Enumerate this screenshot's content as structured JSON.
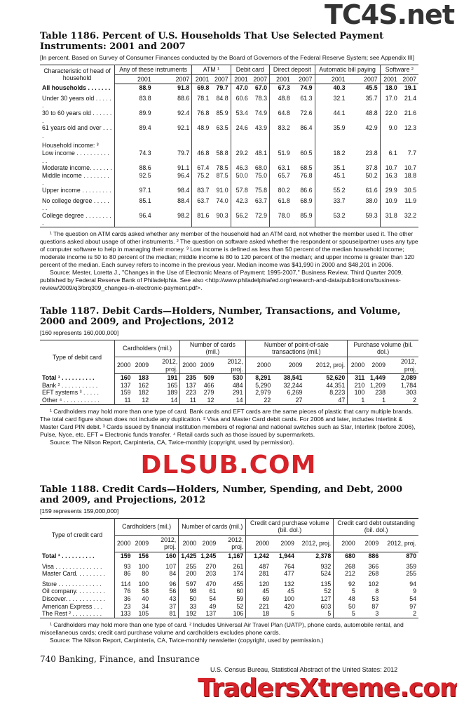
{
  "watermarks": {
    "top": "TC4S.net",
    "middle": "DLSUB.COM",
    "bottom": "TradersXtreme.com"
  },
  "t1186": {
    "title": "Table 1186. Percent of U.S. Households That Use Selected Payment Instruments: 2001 and 2007",
    "subtitle": "[In percent. Based on Survey of Consumer Finances conducted by the Board of Governors of the Federal Reserve System; see Appendix III]",
    "stub": "Characteristic of head of household",
    "groups": [
      "Any of these instruments",
      "ATM ¹",
      "Debit card",
      "Direct deposit",
      "Automatic bill paying",
      "Software ²"
    ],
    "years": [
      "2001",
      "2007"
    ],
    "rows": [
      {
        "label": "All households . . . . . . .",
        "bold": true,
        "values": [
          "88.9",
          "91.8",
          "69.8",
          "79.7",
          "47.0",
          "67.0",
          "67.3",
          "74.9",
          "40.3",
          "45.5",
          "18.0",
          "19.1"
        ]
      },
      {
        "label": "Under 30 years old . . . . . .",
        "gap": true,
        "values": [
          "83.8",
          "88.6",
          "78.1",
          "84.8",
          "60.6",
          "78.3",
          "48.8",
          "61.3",
          "32.1",
          "35.7",
          "17.0",
          "21.4"
        ]
      },
      {
        "label": "30 to 60 years old . . . . . . .",
        "values": [
          "89.9",
          "92.4",
          "76.8",
          "85.9",
          "53.4",
          "74.9",
          "64.8",
          "72.6",
          "44.1",
          "48.8",
          "22.0",
          "21.6"
        ]
      },
      {
        "label": "61 years old and over . . . .",
        "values": [
          "89.4",
          "92.1",
          "48.9",
          "63.5",
          "24.6",
          "43.9",
          "83.2",
          "86.4",
          "35.9",
          "42.9",
          "9.0",
          "12.3"
        ]
      },
      {
        "label": "Household income: ³",
        "gap": true,
        "values": []
      },
      {
        "label": "Low income . . . . . . . . . . . .",
        "values": [
          "74.3",
          "79.7",
          "46.8",
          "58.8",
          "29.2",
          "48.1",
          "51.9",
          "60.5",
          "18.2",
          "23.8",
          "6.1",
          "7.7"
        ]
      },
      {
        "label": " Moderate income. . . . . . .",
        "values": [
          "88.6",
          "91.1",
          "67.4",
          "78.5",
          "46.3",
          "68.0",
          "63.1",
          "68.5",
          "35.1",
          "37.8",
          "10.7",
          "10.7"
        ]
      },
      {
        "label": " Middle income . . . . . . . . .",
        "values": [
          "92.5",
          "96.4",
          "75.2",
          "87.5",
          "50.0",
          "75.0",
          "65.7",
          "76.8",
          "45.1",
          "50.2",
          "16.3",
          "18.8"
        ]
      },
      {
        "label": " Upper income . . . . . . . . .",
        "values": [
          "97.1",
          "98.4",
          "83.7",
          "91.0",
          "57.8",
          "75.8",
          "80.2",
          "86.6",
          "55.2",
          "61.6",
          "29.9",
          "30.5"
        ]
      },
      {
        "label": "No college degree . . . . . . .",
        "gap": true,
        "values": [
          "85.1",
          "88.4",
          "63.7",
          "74.0",
          "42.3",
          "63.7",
          "61.8",
          "68.9",
          "33.7",
          "38.0",
          "10.9",
          "11.9"
        ]
      },
      {
        "label": "College degree . . . . . . . . .",
        "values": [
          "96.4",
          "98.2",
          "81.6",
          "90.3",
          "56.2",
          "72.9",
          "78.0",
          "85.9",
          "53.2",
          "59.3",
          "31.8",
          "32.2"
        ]
      }
    ],
    "footnotes": "¹ The question on ATM cards asked whether any member of the household had an ATM card, not whether the member used it. The other questions asked about usage of other instruments. ² The question on software asked whether the respondent or spouse/partner uses any type of computer software to help in managing their money. ³ Low income is defined as less than 50 percent of the median household income; moderate income is 50 to 80 percent of the median; middle income is 80 to 120 percent of the median; and upper income is greater than 120 percent of the median. Each survey refers to income in the previous year. Median income was $41,990 in 2000 and $48,201 in 2006.",
    "source": "Source: Mester, Loretta J., \"Changes in the Use of Electronic Means of Payment: 1995-2007,\" Business Review, Third Quarter 2009, published by Federal Reserve Bank of Philadelphia. See also <http://www.philadelphiafed.org/research-and-data/publications/business-review/2009/q3/brq309_changes-in-electronic-payment.pdf>."
  },
  "t1187": {
    "title": "Table 1187. Debit Cards—Holders, Number, Transactions, and Volume, 2000 and 2009, and Projections, 2012",
    "subtitle": "[160 represents 160,000,000]",
    "stub": "Type of debit card",
    "groups": [
      "Cardholders (mil.)",
      "Number of cards (mil.)",
      "Number of point-of-sale transactions (mil.)",
      "Purchase volume (bil. dol.)"
    ],
    "years": [
      "2000",
      "2009",
      "2012, proj."
    ],
    "rows": [
      {
        "label": "Total ¹ . . . . . . . . . .",
        "bold": true,
        "values": [
          "160",
          "183",
          "191",
          "235",
          "509",
          "530",
          "8,291",
          "38,541",
          "52,620",
          "311",
          "1,449",
          "2,089"
        ]
      },
      {
        "label": "Bank ² . . . . . . . . . . .",
        "values": [
          "137",
          "162",
          "165",
          "137",
          "466",
          "484",
          "5,290",
          "32,244",
          "44,351",
          "210",
          "1,209",
          "1,784"
        ]
      },
      {
        "label": "EFT systems ³ . . . . .",
        "values": [
          "159",
          "182",
          "189",
          "223",
          "279",
          "291",
          "2,979",
          "6,269",
          "8,223",
          "100",
          "238",
          "303"
        ]
      },
      {
        "label": "Other ⁴ . . . . . . . . . . .",
        "values": [
          "11",
          "12",
          "14",
          "11",
          "12",
          "14",
          "22",
          "27",
          "47",
          "1",
          "1",
          "2"
        ]
      }
    ],
    "footnotes": "¹ Cardholders may hold more than one type of card. Bank cards and EFT cards are the same pieces of plastic that carry multiple brands. The total card figure shown does not include any duplication. ² Visa and Master Card debit cards. For 2006 and later, includes Interlink & Master Card PIN debit. ³ Cards issued by financial institution members of regional and national switches such as Star, Interlink (before 2006), Pulse, Nyce, etc. EFT = Electronic funds transfer. ⁴ Retail cards such as those issued by supermarkets.",
    "source": "Source: The Nilson Report, Carpinteria, CA, Twice-monthly (copyright, used by permission)."
  },
  "t1188": {
    "title": "Table 1188. Credit Cards—Holders, Number, Spending, and Debt, 2000 and 2009, and Projections, 2012",
    "subtitle": "[159 represents 159,000,000]",
    "stub": "Type of credit card",
    "groups": [
      "Cardholders (mil.)",
      "Number of cards (mil.)",
      "Credit card purchase volume (bil. dol.)",
      "Credit card debt outstanding (bil. dol.)"
    ],
    "years": [
      "2000",
      "2009",
      "2012, proj."
    ],
    "rows": [
      {
        "label": "Total ¹ . . . . . . . . . .",
        "bold": true,
        "values": [
          "159",
          "156",
          "160",
          "1,425",
          "1,245",
          "1,167",
          "1,242",
          "1,944",
          "2,378",
          "680",
          "886",
          "870"
        ]
      },
      {
        "label": "Visa . . . . . . . . . . . . . .",
        "gap": true,
        "values": [
          "93",
          "100",
          "107",
          "255",
          "270",
          "261",
          "487",
          "764",
          "932",
          "268",
          "366",
          "359"
        ]
      },
      {
        "label": "Master Card. . . . . . . . .",
        "values": [
          "86",
          "80",
          "84",
          "200",
          "203",
          "174",
          "281",
          "477",
          "524",
          "212",
          "268",
          "255"
        ]
      },
      {
        "label": "Store . . . . . . . . . . . . .",
        "gap": true,
        "values": [
          "114",
          "100",
          "96",
          "597",
          "470",
          "455",
          "120",
          "132",
          "135",
          "92",
          "102",
          "94"
        ]
      },
      {
        "label": "Oil company. . . . . . . . .",
        "values": [
          "76",
          "58",
          "56",
          "98",
          "61",
          "60",
          "45",
          "45",
          "52",
          "5",
          "8",
          "9"
        ]
      },
      {
        "label": "Discover. . . . . . . . . . . .",
        "values": [
          "36",
          "40",
          "43",
          "50",
          "54",
          "59",
          "69",
          "100",
          "127",
          "48",
          "53",
          "54"
        ]
      },
      {
        "label": "American Express . . .",
        "values": [
          "23",
          "34",
          "37",
          "33",
          "49",
          "52",
          "221",
          "420",
          "603",
          "50",
          "87",
          "97"
        ]
      },
      {
        "label": "The Rest ² . . . . . . . . .",
        "values": [
          "133",
          "105",
          "81",
          "192",
          "137",
          "106",
          "18",
          "5",
          "5",
          "5",
          "3",
          "2"
        ]
      }
    ],
    "footnotes": "¹ Cardholders may hold more than one type of card. ² Includes Universal Air Travel Plan (UATP), phone cards, automobile rental, and miscellaneous cards; credit card purchase volume and cardholders excludes phone cards.",
    "source": "Source: The Nilson Report, Carpintería, CA, Twice-monthly newsletter (copyright, used by permission.)"
  },
  "footer": {
    "page_section": "740 Banking, Finance, and Insurance",
    "publication": "U.S. Census Bureau, Statistical Abstract of the United States: 2012"
  }
}
